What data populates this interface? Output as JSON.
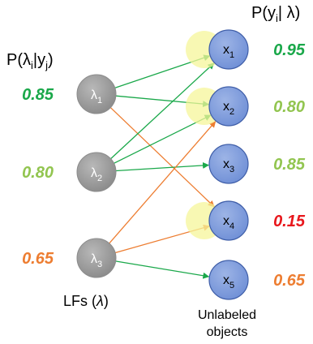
{
  "lf_header": {
    "base": "P(λ",
    "sub1": "i",
    "mid": "|y",
    "sub2": "j",
    "end": ")"
  },
  "obj_header": {
    "base": "P(y",
    "sub1": "i",
    "end": "| λ)"
  },
  "lfs": [
    {
      "name": "λ",
      "sub": "1",
      "prob": "0.85",
      "color": "#1aa84a"
    },
    {
      "name": "λ",
      "sub": "2",
      "prob": "0.80",
      "color": "#92c550"
    },
    {
      "name": "λ",
      "sub": "3",
      "prob": "0.65",
      "color": "#ed7d31"
    }
  ],
  "objects": [
    {
      "name": "x",
      "sub": "1",
      "prob": "0.95",
      "color": "#1aa84a",
      "highlight": true
    },
    {
      "name": "x",
      "sub": "2",
      "prob": "0.80",
      "color": "#92c550",
      "highlight": true
    },
    {
      "name": "x",
      "sub": "3",
      "prob": "0.85",
      "color": "#92c550",
      "highlight": false
    },
    {
      "name": "x",
      "sub": "4",
      "prob": "0.15",
      "color": "#e8171c",
      "highlight": true
    },
    {
      "name": "x",
      "sub": "5",
      "prob": "0.65",
      "color": "#ed7d31",
      "highlight": false
    }
  ],
  "edges": [
    {
      "from": 1,
      "to": 1,
      "color": "#1aa84a"
    },
    {
      "from": 1,
      "to": 2,
      "color": "#1aa84a"
    },
    {
      "from": 1,
      "to": 4,
      "color": "#ed7d31"
    },
    {
      "from": 2,
      "to": 1,
      "color": "#1aa84a"
    },
    {
      "from": 2,
      "to": 2,
      "color": "#1aa84a"
    },
    {
      "from": 2,
      "to": 3,
      "color": "#1aa84a"
    },
    {
      "from": 3,
      "to": 2,
      "color": "#ed7d31"
    },
    {
      "from": 3,
      "to": 4,
      "color": "#ed7d31"
    },
    {
      "from": 3,
      "to": 5,
      "color": "#1aa84a"
    }
  ],
  "lf_caption": {
    "text": "LFs (",
    "lambda": "λ",
    "end": ")"
  },
  "obj_caption": {
    "line1": "Unlabeled",
    "line2": "objects"
  }
}
